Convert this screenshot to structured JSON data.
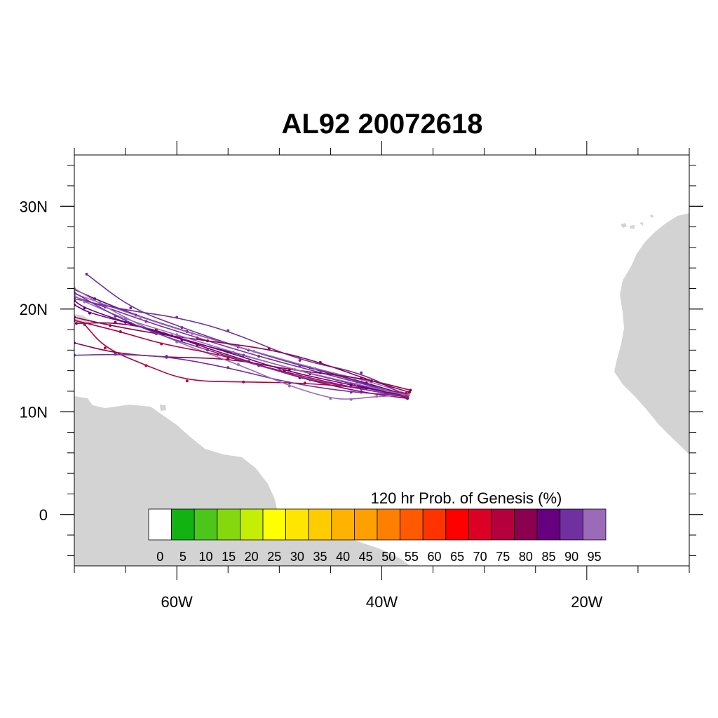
{
  "title": "AL92 20072618",
  "map": {
    "lon_range": [
      -70,
      -10
    ],
    "lat_range": [
      -5,
      35
    ],
    "land_color": "#d3d3d3",
    "ocean_color": "#ffffff",
    "x_major_ticks": [
      {
        "lon": -60,
        "label": "60W"
      },
      {
        "lon": -40,
        "label": "40W"
      },
      {
        "lon": -20,
        "label": "20W"
      }
    ],
    "y_major_ticks": [
      {
        "lat": 30,
        "label": "30N"
      },
      {
        "lat": 20,
        "label": "20N"
      },
      {
        "lat": 10,
        "label": "10N"
      },
      {
        "lat": 0,
        "label": "0"
      }
    ],
    "x_minor_step": 5,
    "y_minor_step": 2
  },
  "colorbar": {
    "title": "120 hr Prob. of Genesis (%)",
    "labels": [
      "0",
      "5",
      "10",
      "15",
      "20",
      "25",
      "30",
      "35",
      "40",
      "45",
      "50",
      "55",
      "60",
      "65",
      "70",
      "75",
      "80",
      "85",
      "90",
      "95"
    ],
    "colors": [
      "#ffffff",
      "#12b212",
      "#4cc61a",
      "#86d80e",
      "#c4ee06",
      "#ffff00",
      "#ffe600",
      "#ffcc00",
      "#ffb300",
      "#ffa000",
      "#ff8000",
      "#ff5a00",
      "#ff3300",
      "#ff0000",
      "#dc0025",
      "#b4003c",
      "#8c0050",
      "#660080",
      "#7030a0",
      "#9b6ab8"
    ]
  },
  "chart_data": {
    "type": "line",
    "title": "AL92 20072618",
    "xlabel": "",
    "ylabel": "",
    "xlim": [
      -70,
      -10
    ],
    "ylim": [
      -5,
      35
    ],
    "series": [
      {
        "color": "#7030a0",
        "points": [
          [
            -37.5,
            11.5
          ],
          [
            -41,
            12.5
          ],
          [
            -46,
            13.8
          ],
          [
            -52,
            15.4
          ],
          [
            -58,
            17.2
          ],
          [
            -63,
            18.8
          ],
          [
            -67,
            20.2
          ],
          [
            -70,
            21.2
          ]
        ]
      },
      {
        "color": "#660080",
        "points": [
          [
            -37.5,
            11.6
          ],
          [
            -41.5,
            12.8
          ],
          [
            -47,
            14.3
          ],
          [
            -53,
            16.0
          ],
          [
            -59,
            17.8
          ],
          [
            -64,
            19.4
          ],
          [
            -68,
            21.0
          ],
          [
            -70,
            21.9
          ]
        ]
      },
      {
        "color": "#7030a0",
        "points": [
          [
            -37.6,
            11.4
          ],
          [
            -42,
            12.9
          ],
          [
            -48,
            14.5
          ],
          [
            -54,
            16.3
          ],
          [
            -59.5,
            18.2
          ],
          [
            -64.5,
            20.1
          ],
          [
            -68.8,
            23.4
          ]
        ]
      },
      {
        "color": "#9b6ab8",
        "points": [
          [
            -37.4,
            11.7
          ],
          [
            -41,
            12.9
          ],
          [
            -46.5,
            14.2
          ],
          [
            -52.5,
            15.9
          ],
          [
            -58.5,
            17.6
          ],
          [
            -63.5,
            19.2
          ],
          [
            -67.5,
            20.6
          ],
          [
            -70,
            21.5
          ]
        ]
      },
      {
        "color": "#8c0050",
        "points": [
          [
            -37.5,
            11.3
          ],
          [
            -42,
            11.9
          ],
          [
            -48,
            13.3
          ],
          [
            -53,
            14.9
          ],
          [
            -58,
            16.5
          ],
          [
            -62,
            18.0
          ],
          [
            -66,
            18.7
          ],
          [
            -69.8,
            18.6
          ]
        ]
      },
      {
        "color": "#b4003c",
        "points": [
          [
            -37.6,
            11.8
          ],
          [
            -41.5,
            12.3
          ],
          [
            -47.5,
            12.8
          ],
          [
            -53.5,
            12.9
          ],
          [
            -59,
            13.0
          ],
          [
            -63,
            14.5
          ],
          [
            -67,
            16.2
          ],
          [
            -69,
            18.5
          ]
        ]
      },
      {
        "color": "#8c0050",
        "points": [
          [
            -37.2,
            12.1
          ],
          [
            -42,
            13.3
          ],
          [
            -49,
            14.1
          ],
          [
            -55,
            15.2
          ],
          [
            -61,
            15.3
          ],
          [
            -66,
            15.7
          ],
          [
            -70,
            16.7
          ]
        ]
      },
      {
        "color": "#7030a0",
        "points": [
          [
            -37.8,
            11.6
          ],
          [
            -43,
            11.9
          ],
          [
            -49,
            12.8
          ],
          [
            -55,
            14.3
          ],
          [
            -61,
            15.4
          ],
          [
            -66,
            15.6
          ],
          [
            -70,
            15.5
          ]
        ]
      },
      {
        "color": "#660080",
        "points": [
          [
            -37.5,
            11.5
          ],
          [
            -43,
            12.6
          ],
          [
            -49.5,
            14.0
          ],
          [
            -55,
            15.8
          ],
          [
            -60.5,
            17.4
          ],
          [
            -65,
            18.7
          ],
          [
            -69,
            20.1
          ],
          [
            -70,
            20.8
          ]
        ]
      },
      {
        "color": "#9b6ab8",
        "points": [
          [
            -37.4,
            11.6
          ],
          [
            -40.5,
            11.5
          ],
          [
            -43,
            11.2
          ],
          [
            -45,
            11.3
          ],
          [
            -49,
            12.5
          ],
          [
            -54,
            14.6
          ],
          [
            -60,
            16.8
          ],
          [
            -65,
            19.1
          ],
          [
            -70,
            22.0
          ]
        ]
      },
      {
        "color": "#7030a0",
        "points": [
          [
            -37.5,
            11.5
          ],
          [
            -42,
            13.8
          ],
          [
            -48,
            15.0
          ],
          [
            -55,
            17.9
          ],
          [
            -60,
            19.2
          ],
          [
            -65,
            19.9
          ],
          [
            -70,
            21.0
          ]
        ]
      },
      {
        "color": "#8c0050",
        "points": [
          [
            -37.3,
            11.9
          ],
          [
            -41,
            13.0
          ],
          [
            -46,
            14.8
          ],
          [
            -51,
            16.1
          ],
          [
            -57,
            16.9
          ],
          [
            -62,
            17.6
          ],
          [
            -66.5,
            18.4
          ],
          [
            -70,
            19.2
          ]
        ]
      },
      {
        "color": "#660080",
        "points": [
          [
            -37.6,
            11.4
          ],
          [
            -41.5,
            12.4
          ],
          [
            -47,
            13.7
          ],
          [
            -53.5,
            15.5
          ],
          [
            -59.5,
            17.0
          ],
          [
            -64.5,
            18.6
          ],
          [
            -68.5,
            19.6
          ],
          [
            -70,
            20.4
          ]
        ]
      },
      {
        "color": "#9b6ab8",
        "points": [
          [
            -37.5,
            11.6
          ],
          [
            -42.5,
            12.7
          ],
          [
            -48.5,
            14.1
          ],
          [
            -54.5,
            15.8
          ],
          [
            -60,
            17.5
          ],
          [
            -65,
            19.0
          ],
          [
            -69,
            20.7
          ],
          [
            -70,
            21.3
          ]
        ]
      },
      {
        "color": "#b4003c",
        "points": [
          [
            -37.5,
            11.4
          ],
          [
            -44,
            12.6
          ],
          [
            -50,
            14.0
          ],
          [
            -56,
            15.6
          ],
          [
            -61.5,
            16.6
          ],
          [
            -65.5,
            17.8
          ],
          [
            -70,
            18.9
          ]
        ]
      },
      {
        "color": "#7030a0",
        "points": [
          [
            -37.6,
            11.5
          ],
          [
            -42,
            12.2
          ],
          [
            -47,
            13.1
          ],
          [
            -52,
            14.5
          ],
          [
            -57,
            16.0
          ],
          [
            -62,
            17.6
          ],
          [
            -66,
            19.3
          ],
          [
            -70,
            21.6
          ]
        ]
      }
    ]
  }
}
